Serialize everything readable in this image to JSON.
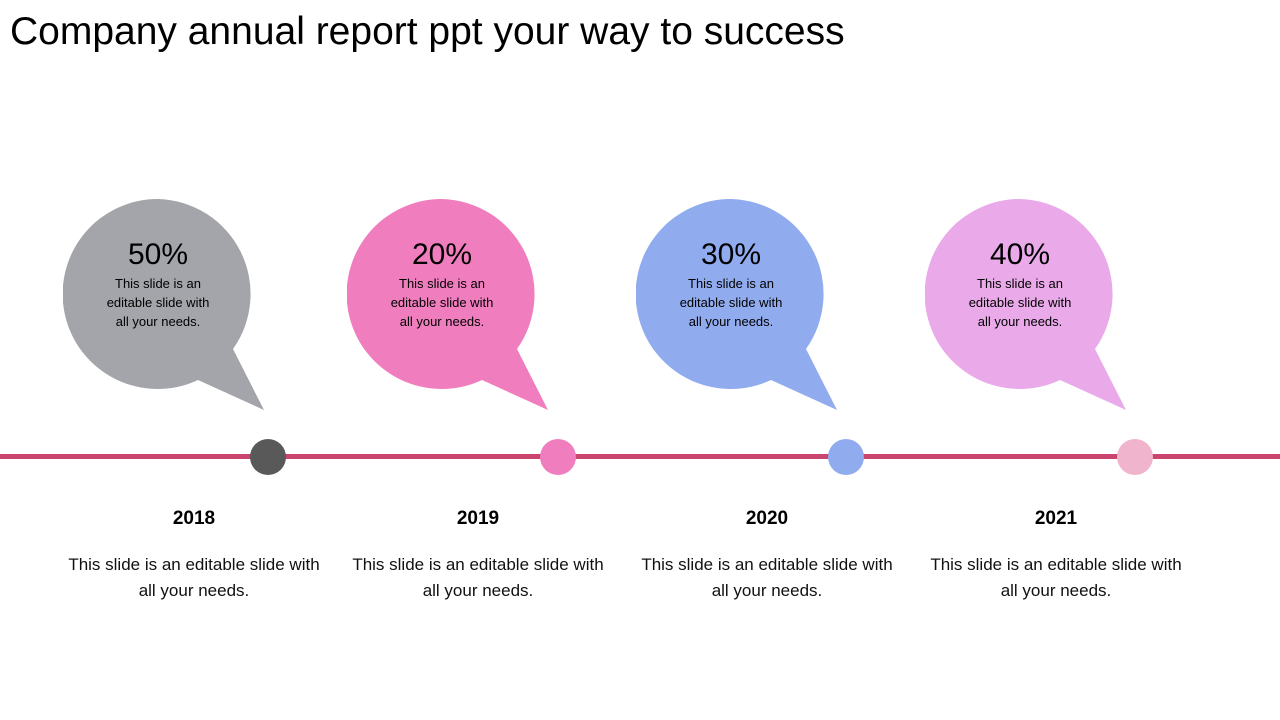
{
  "title": "Company annual report ppt your way to success",
  "colors": {
    "timeline": "#C9456E",
    "text": "#000000"
  },
  "milestones": [
    {
      "percent": "50%",
      "bubble_text": "This slide is an editable slide with all your needs.",
      "year": "2018",
      "description": "This slide is an editable slide with all your needs.",
      "bubble_color": "#A3A5AA",
      "dot_color": "#595959"
    },
    {
      "percent": "20%",
      "bubble_text": "This slide is an editable slide with all your needs.",
      "year": "2019",
      "description": "This slide is an editable slide with all your needs.",
      "bubble_color": "#F07EBE",
      "dot_color": "#F07EBE"
    },
    {
      "percent": "30%",
      "bubble_text": "This slide is an editable slide with all your needs.",
      "year": "2020",
      "description": "This slide is an editable slide with all your needs.",
      "bubble_color": "#91ABEF",
      "dot_color": "#91ABEF"
    },
    {
      "percent": "40%",
      "bubble_text": "This slide is an editable slide with all your needs.",
      "year": "2021",
      "description": "This slide is an editable slide with all your needs.",
      "bubble_color": "#EAAAEA",
      "dot_color": "#F0B4CC"
    }
  ]
}
